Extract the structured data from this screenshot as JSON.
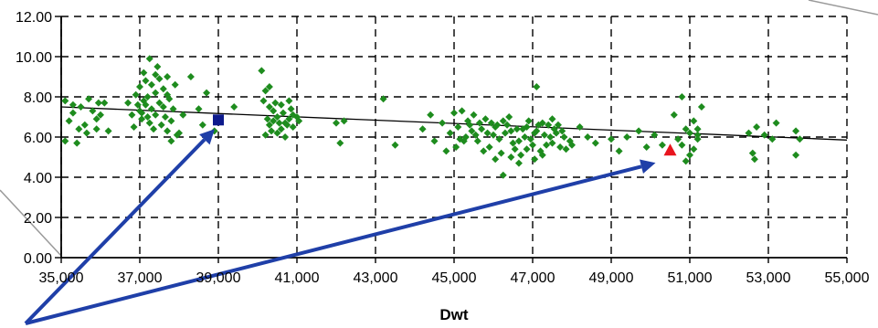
{
  "colors": {
    "background": "#ffffff",
    "grid": "#000000",
    "points": "#1e8c1e",
    "trendline": "#000000",
    "highlight_square": "#0d1a8c",
    "highlight_triangle": "#e8141e",
    "arrow": "#1f3fa8",
    "frame_line": "#9a9a9a"
  },
  "chart_data": {
    "type": "scatter",
    "title": "",
    "xlabel": "Dwt",
    "ylabel": "",
    "xlim": [
      35000,
      55000
    ],
    "ylim": [
      0,
      12
    ],
    "x_ticks": [
      35000,
      37000,
      39000,
      41000,
      43000,
      45000,
      47000,
      49000,
      51000,
      53000,
      55000
    ],
    "x_tick_labels": [
      "35,000",
      "37,000",
      "39,000",
      "41,000",
      "43,000",
      "45,000",
      "47,000",
      "49,000",
      "51,000",
      "53,000",
      "55,000"
    ],
    "y_ticks": [
      0,
      2,
      4,
      6,
      8,
      10,
      12
    ],
    "y_tick_labels": [
      "0.00",
      "2.00",
      "4.00",
      "6.00",
      "8.00",
      "10.00",
      "12.00"
    ],
    "grid": "dashed",
    "trendline": {
      "x": [
        35000,
        55000
      ],
      "y": [
        7.5,
        5.85
      ]
    },
    "highlights": [
      {
        "shape": "square",
        "x": 39000,
        "y": 6.85,
        "color": "#0d1a8c"
      },
      {
        "shape": "triangle",
        "x": 50500,
        "y": 5.35,
        "color": "#e8141e"
      }
    ],
    "series": [
      {
        "marker": "diamond",
        "color": "#1e8c1e",
        "points": [
          [
            35100,
            7.8
          ],
          [
            35300,
            7.6
          ],
          [
            35200,
            6.8
          ],
          [
            35100,
            5.8
          ],
          [
            35400,
            5.7
          ],
          [
            35500,
            7.5
          ],
          [
            35700,
            7.9
          ],
          [
            35800,
            7.3
          ],
          [
            35900,
            6.4
          ],
          [
            35950,
            7.7
          ],
          [
            35600,
            6.6
          ],
          [
            36100,
            7.7
          ],
          [
            36200,
            6.3
          ],
          [
            35300,
            7.2
          ],
          [
            35650,
            6.2
          ],
          [
            35900,
            6.9
          ],
          [
            36000,
            7.1
          ],
          [
            35450,
            6.4
          ],
          [
            36700,
            7.7
          ],
          [
            36800,
            7.1
          ],
          [
            36850,
            6.5
          ],
          [
            36900,
            8.1
          ],
          [
            36950,
            7.6
          ],
          [
            37000,
            7.3
          ],
          [
            37000,
            8.5
          ],
          [
            37050,
            7.2
          ],
          [
            37100,
            9.2
          ],
          [
            37100,
            7.8
          ],
          [
            37150,
            8.8
          ],
          [
            37200,
            7.0
          ],
          [
            37200,
            8.0
          ],
          [
            37250,
            9.9
          ],
          [
            37300,
            8.6
          ],
          [
            37300,
            7.4
          ],
          [
            37350,
            6.4
          ],
          [
            37400,
            8.2
          ],
          [
            37400,
            7.1
          ],
          [
            37450,
            9.5
          ],
          [
            37500,
            7.7
          ],
          [
            37500,
            8.9
          ],
          [
            37550,
            6.6
          ],
          [
            37600,
            8.4
          ],
          [
            37600,
            7.5
          ],
          [
            37650,
            7.0
          ],
          [
            37700,
            8.1
          ],
          [
            37700,
            6.3
          ],
          [
            37750,
            7.9
          ],
          [
            37800,
            6.8
          ],
          [
            37800,
            5.8
          ],
          [
            37850,
            7.4
          ],
          [
            37900,
            8.6
          ],
          [
            37950,
            6.1
          ],
          [
            37050,
            6.9
          ],
          [
            37250,
            6.7
          ],
          [
            37400,
            9.1
          ],
          [
            37150,
            7.6
          ],
          [
            37700,
            9.0
          ],
          [
            38000,
            6.2
          ],
          [
            38100,
            7.1
          ],
          [
            38300,
            9.0
          ],
          [
            38500,
            7.4
          ],
          [
            38700,
            8.2
          ],
          [
            38900,
            6.3
          ],
          [
            38600,
            6.6
          ],
          [
            39400,
            7.5
          ],
          [
            40100,
            9.3
          ],
          [
            40200,
            8.3
          ],
          [
            40300,
            7.5
          ],
          [
            40400,
            6.8
          ],
          [
            40500,
            7.0
          ],
          [
            40600,
            6.4
          ],
          [
            40700,
            6.7
          ],
          [
            40800,
            7.8
          ],
          [
            40900,
            7.1
          ],
          [
            40200,
            6.1
          ],
          [
            40300,
            6.6
          ],
          [
            40400,
            7.3
          ],
          [
            40500,
            6.2
          ],
          [
            40600,
            7.6
          ],
          [
            40700,
            6.0
          ],
          [
            40800,
            6.9
          ],
          [
            40900,
            6.5
          ],
          [
            41000,
            7.0
          ],
          [
            40150,
            7.8
          ],
          [
            40250,
            6.9
          ],
          [
            40350,
            6.3
          ],
          [
            40450,
            7.7
          ],
          [
            40550,
            6.7
          ],
          [
            40650,
            7.2
          ],
          [
            40750,
            6.6
          ],
          [
            40850,
            7.4
          ],
          [
            41050,
            6.8
          ],
          [
            40300,
            8.5
          ],
          [
            42000,
            6.7
          ],
          [
            42200,
            6.8
          ],
          [
            42100,
            5.7
          ],
          [
            43200,
            7.9
          ],
          [
            43500,
            5.6
          ],
          [
            44200,
            6.4
          ],
          [
            44400,
            7.1
          ],
          [
            44500,
            5.8
          ],
          [
            44700,
            6.7
          ],
          [
            44800,
            5.3
          ],
          [
            44900,
            6.2
          ],
          [
            45000,
            7.2
          ],
          [
            45100,
            6.5
          ],
          [
            45200,
            7.3
          ],
          [
            45300,
            6.0
          ],
          [
            45400,
            6.6
          ],
          [
            45500,
            7.1
          ],
          [
            45600,
            5.8
          ],
          [
            45700,
            6.4
          ],
          [
            45800,
            6.9
          ],
          [
            45900,
            5.5
          ],
          [
            46000,
            6.1
          ],
          [
            46100,
            6.6
          ],
          [
            46200,
            5.2
          ],
          [
            46300,
            6.2
          ],
          [
            46400,
            7.0
          ],
          [
            46500,
            5.7
          ],
          [
            46600,
            6.4
          ],
          [
            46700,
            5.1
          ],
          [
            46800,
            6.0
          ],
          [
            46900,
            6.8
          ],
          [
            47000,
            5.6
          ],
          [
            47100,
            6.3
          ],
          [
            47200,
            5.3
          ],
          [
            47300,
            6.1
          ],
          [
            47400,
            6.6
          ],
          [
            47500,
            5.7
          ],
          [
            47600,
            6.2
          ],
          [
            47700,
            5.5
          ],
          [
            47800,
            6.0
          ],
          [
            45150,
            5.9
          ],
          [
            45350,
            6.8
          ],
          [
            45550,
            6.1
          ],
          [
            45750,
            5.3
          ],
          [
            45950,
            6.7
          ],
          [
            46150,
            5.9
          ],
          [
            46350,
            6.6
          ],
          [
            46550,
            5.4
          ],
          [
            46750,
            6.4
          ],
          [
            46950,
            5.9
          ],
          [
            47150,
            6.6
          ],
          [
            47350,
            5.6
          ],
          [
            47550,
            6.4
          ],
          [
            47750,
            6.3
          ],
          [
            47950,
            5.8
          ],
          [
            46050,
            4.9
          ],
          [
            46250,
            4.1
          ],
          [
            46450,
            5.0
          ],
          [
            46650,
            4.7
          ],
          [
            46850,
            5.4
          ],
          [
            47050,
            4.9
          ],
          [
            47250,
            5.1
          ],
          [
            45050,
            5.5
          ],
          [
            45250,
            5.8
          ],
          [
            45450,
            6.3
          ],
          [
            45650,
            6.7
          ],
          [
            45850,
            6.2
          ],
          [
            46050,
            6.5
          ],
          [
            46250,
            6.8
          ],
          [
            46450,
            6.3
          ],
          [
            46650,
            5.8
          ],
          [
            46850,
            6.5
          ],
          [
            47050,
            6.2
          ],
          [
            47250,
            6.7
          ],
          [
            47450,
            6.0
          ],
          [
            47650,
            6.6
          ],
          [
            47850,
            5.4
          ],
          [
            47100,
            8.5
          ],
          [
            47500,
            6.9
          ],
          [
            48000,
            5.6
          ],
          [
            48200,
            6.5
          ],
          [
            48400,
            6.0
          ],
          [
            48600,
            5.7
          ],
          [
            49000,
            5.9
          ],
          [
            49200,
            5.3
          ],
          [
            49400,
            6.0
          ],
          [
            49700,
            6.3
          ],
          [
            49900,
            5.5
          ],
          [
            50100,
            6.1
          ],
          [
            50300,
            5.6
          ],
          [
            50600,
            7.1
          ],
          [
            50700,
            5.9
          ],
          [
            50800,
            8.0
          ],
          [
            50900,
            6.4
          ],
          [
            51000,
            5.1
          ],
          [
            51100,
            6.8
          ],
          [
            51200,
            5.9
          ],
          [
            51300,
            7.5
          ],
          [
            51000,
            6.2
          ],
          [
            51100,
            5.4
          ],
          [
            51200,
            6.1
          ],
          [
            50900,
            4.8
          ],
          [
            50800,
            5.6
          ],
          [
            52600,
            5.2
          ],
          [
            52650,
            4.9
          ],
          [
            52500,
            6.2
          ],
          [
            52900,
            6.1
          ],
          [
            53200,
            6.7
          ],
          [
            53100,
            5.9
          ],
          [
            53700,
            6.3
          ],
          [
            53800,
            5.9
          ],
          [
            53700,
            5.1
          ],
          [
            52700,
            6.5
          ],
          [
            51200,
            6.4
          ]
        ]
      }
    ]
  }
}
